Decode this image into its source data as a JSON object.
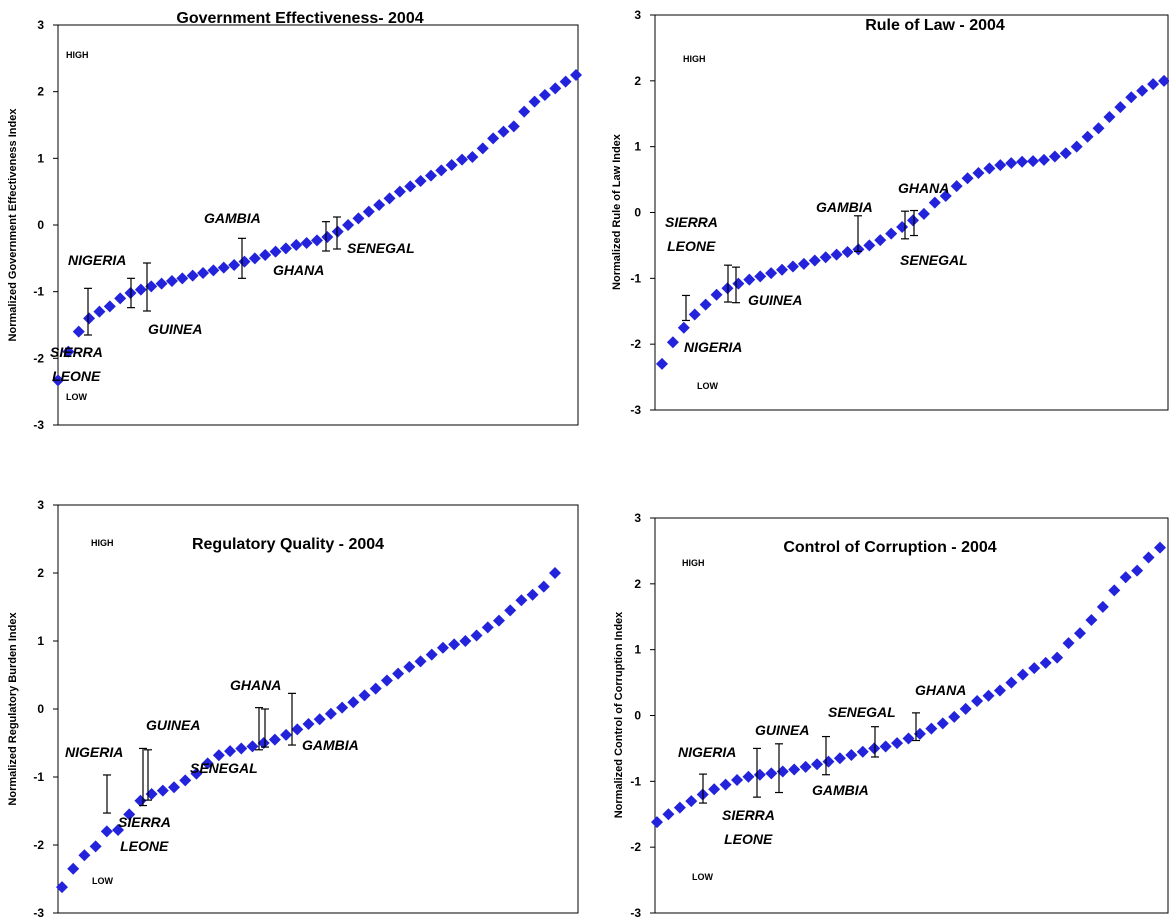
{
  "chart_data": [
    {
      "type": "scatter",
      "title": "Government Effectiveness- 2004",
      "y_label": "Normalized Government Effectiveness Index",
      "annotations": [
        "HIGH",
        "LOW"
      ],
      "color": "#2323dc",
      "ylim": [
        -3,
        3
      ],
      "yticks": [
        -3,
        -2,
        -1,
        0,
        1,
        2,
        3
      ],
      "values": [
        -2.33,
        -1.9,
        -1.6,
        -1.4,
        -1.3,
        -1.22,
        -1.1,
        -1.02,
        -0.97,
        -0.92,
        -0.88,
        -0.84,
        -0.8,
        -0.76,
        -0.72,
        -0.68,
        -0.64,
        -0.6,
        -0.55,
        -0.5,
        -0.45,
        -0.4,
        -0.35,
        -0.3,
        -0.27,
        -0.23,
        -0.18,
        -0.1,
        0.0,
        0.1,
        0.2,
        0.3,
        0.4,
        0.5,
        0.58,
        0.66,
        0.74,
        0.82,
        0.9,
        0.98,
        1.02,
        1.15,
        1.3,
        1.4,
        1.48,
        1.7,
        1.85,
        1.95,
        2.05,
        2.15,
        2.25
      ],
      "highlights": [
        {
          "name": "SIERRA LEONE",
          "value": -1.3,
          "error": 0.35
        },
        {
          "name": "NIGERIA",
          "value": -1.02,
          "error": 0.22
        },
        {
          "name": "GUINEA",
          "value": -0.93,
          "error": 0.36
        },
        {
          "name": "GAMBIA",
          "value": -0.5,
          "error": 0.3
        },
        {
          "name": "GHANA",
          "value": -0.17,
          "error": 0.22
        },
        {
          "name": "SENEGAL",
          "value": -0.12,
          "error": 0.24
        }
      ]
    },
    {
      "type": "scatter",
      "title": "Rule of Law - 2004",
      "y_label": "Normalized Rule of Law Index",
      "annotations": [
        "HIGH",
        "LOW"
      ],
      "color": "#2323dc",
      "ylim": [
        -3,
        3
      ],
      "yticks": [
        -3,
        -2,
        -1,
        0,
        1,
        2,
        3
      ],
      "values": [
        -2.3,
        -1.97,
        -1.75,
        -1.55,
        -1.4,
        -1.25,
        -1.15,
        -1.08,
        -1.02,
        -0.97,
        -0.92,
        -0.87,
        -0.82,
        -0.78,
        -0.73,
        -0.68,
        -0.64,
        -0.6,
        -0.56,
        -0.5,
        -0.42,
        -0.32,
        -0.22,
        -0.12,
        -0.02,
        0.15,
        0.25,
        0.4,
        0.52,
        0.6,
        0.67,
        0.72,
        0.75,
        0.77,
        0.78,
        0.8,
        0.85,
        0.9,
        1.0,
        1.15,
        1.28,
        1.45,
        1.6,
        1.75,
        1.85,
        1.95,
        2.0
      ],
      "highlights": [
        {
          "name": "NIGERIA",
          "value": -1.45,
          "error": 0.19
        },
        {
          "name": "SIERRA LEONE",
          "value": -1.08,
          "error": 0.28
        },
        {
          "name": "GUINEA",
          "value": -1.1,
          "error": 0.27
        },
        {
          "name": "GAMBIA",
          "value": -0.32,
          "error": 0.27
        },
        {
          "name": "GHANA",
          "value": -0.19,
          "error": 0.21
        },
        {
          "name": "SENEGAL",
          "value": -0.16,
          "error": 0.19
        }
      ]
    },
    {
      "type": "scatter",
      "title": "Regulatory Quality - 2004",
      "y_label": "Normalized Regulatory Burden Index",
      "annotations": [
        "HIGH",
        "LOW"
      ],
      "color": "#2323dc",
      "ylim": [
        -3,
        3
      ],
      "yticks": [
        -3,
        -2,
        -1,
        0,
        1,
        2,
        3
      ],
      "values": [
        -2.62,
        -2.35,
        -2.15,
        -2.02,
        -1.8,
        -1.78,
        -1.55,
        -1.35,
        -1.25,
        -1.2,
        -1.15,
        -1.05,
        -0.95,
        -0.8,
        -0.68,
        -0.62,
        -0.58,
        -0.55,
        -0.5,
        -0.45,
        -0.38,
        -0.3,
        -0.22,
        -0.15,
        -0.07,
        0.02,
        0.1,
        0.2,
        0.3,
        0.42,
        0.52,
        0.62,
        0.7,
        0.8,
        0.9,
        0.95,
        1.0,
        1.08,
        1.2,
        1.3,
        1.45,
        1.6,
        1.68,
        1.8,
        2.0
      ],
      "highlights": [
        {
          "name": "NIGERIA",
          "value": -1.25,
          "error": 0.28
        },
        {
          "name": "SIERRA LEONE",
          "value": -1.0,
          "error": 0.42
        },
        {
          "name": "GUINEA",
          "value": -0.97,
          "error": 0.37
        },
        {
          "name": "SENEGAL",
          "value": -0.29,
          "error": 0.31
        },
        {
          "name": "GHANA",
          "value": -0.28,
          "error": 0.28
        },
        {
          "name": "GAMBIA",
          "value": -0.15,
          "error": 0.38
        }
      ]
    },
    {
      "type": "scatter",
      "title": "Control of Corruption - 2004",
      "y_label": "Normalized Control of Corruption Index",
      "annotations": [
        "HIGH",
        "LOW"
      ],
      "color": "#2323dc",
      "ylim": [
        -3,
        3
      ],
      "yticks": [
        -3,
        -2,
        -1,
        0,
        1,
        2,
        3
      ],
      "values": [
        -1.62,
        -1.5,
        -1.4,
        -1.3,
        -1.2,
        -1.12,
        -1.05,
        -0.98,
        -0.93,
        -0.9,
        -0.88,
        -0.85,
        -0.82,
        -0.78,
        -0.74,
        -0.7,
        -0.65,
        -0.6,
        -0.55,
        -0.5,
        -0.47,
        -0.42,
        -0.35,
        -0.28,
        -0.2,
        -0.12,
        -0.02,
        0.1,
        0.22,
        0.3,
        0.38,
        0.5,
        0.62,
        0.72,
        0.8,
        0.88,
        1.1,
        1.25,
        1.45,
        1.65,
        1.9,
        2.1,
        2.2,
        2.4,
        2.55
      ],
      "highlights": [
        {
          "name": "NIGERIA",
          "value": -1.11,
          "error": 0.22
        },
        {
          "name": "SIERRA LEONE",
          "value": -0.87,
          "error": 0.37
        },
        {
          "name": "GUINEA",
          "value": -0.8,
          "error": 0.37
        },
        {
          "name": "GAMBIA",
          "value": -0.61,
          "error": 0.29
        },
        {
          "name": "SENEGAL",
          "value": -0.4,
          "error": 0.23
        },
        {
          "name": "GHANA",
          "value": -0.17,
          "error": 0.21
        }
      ]
    }
  ]
}
